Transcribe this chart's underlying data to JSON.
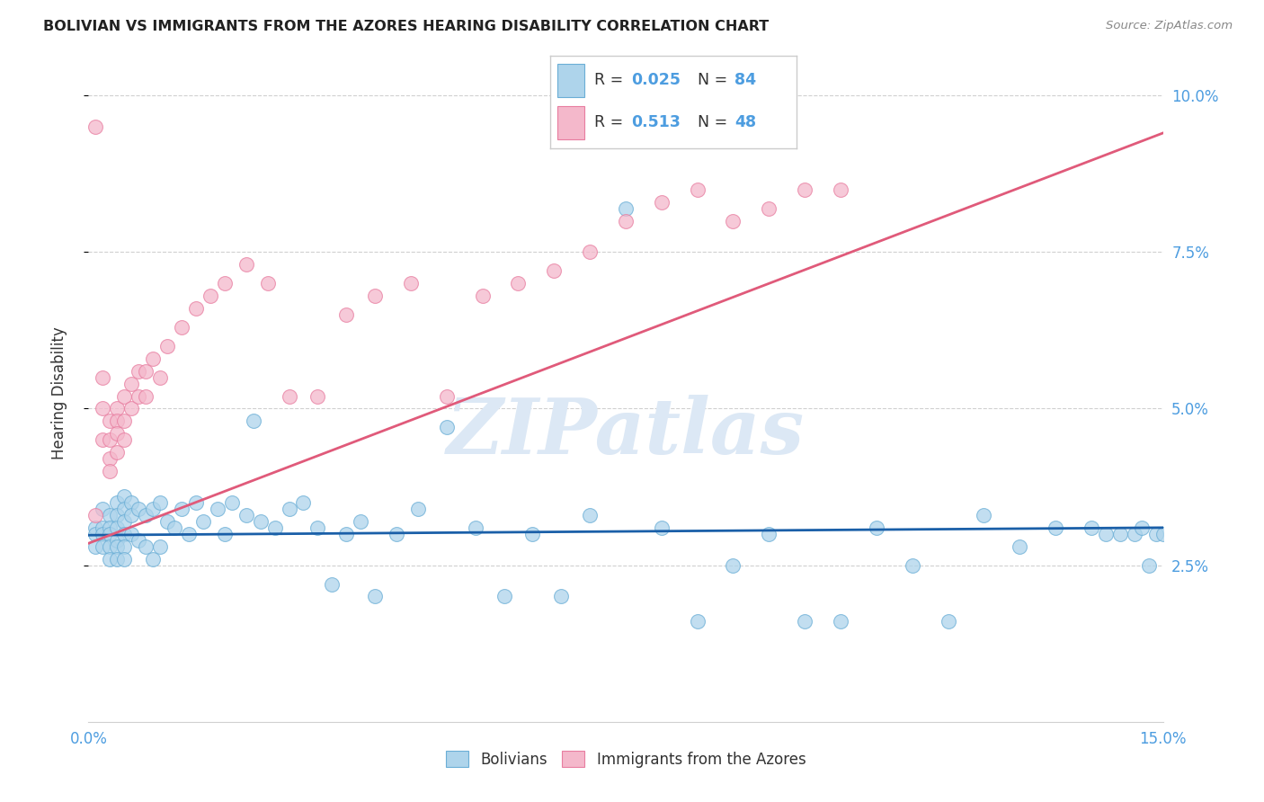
{
  "title": "BOLIVIAN VS IMMIGRANTS FROM THE AZORES HEARING DISABILITY CORRELATION CHART",
  "source": "Source: ZipAtlas.com",
  "ylabel": "Hearing Disability",
  "xlim": [
    0.0,
    0.15
  ],
  "ylim": [
    0.0,
    0.105
  ],
  "xtick_positions": [
    0.0,
    0.05,
    0.1,
    0.15
  ],
  "xtick_labels": [
    "0.0%",
    "",
    "",
    "15.0%"
  ],
  "ytick_positions": [
    0.025,
    0.05,
    0.075,
    0.1
  ],
  "ytick_labels": [
    "2.5%",
    "5.0%",
    "7.5%",
    "10.0%"
  ],
  "blue_fill": "#aed4eb",
  "blue_edge": "#6aaed6",
  "pink_fill": "#f4b8cb",
  "pink_edge": "#e87da0",
  "blue_line": "#1a5fa8",
  "pink_line": "#e05a7a",
  "axis_color": "#4d9de0",
  "grid_color": "#d0d0d0",
  "title_color": "#222222",
  "source_color": "#888888",
  "label_color": "#333333",
  "watermark_color": "#dce8f5",
  "legend1_label": "Bolivians",
  "legend2_label": "Immigrants from the Azores",
  "blue_line_y0": 0.0298,
  "blue_line_y1": 0.031,
  "pink_line_y0": 0.0285,
  "pink_line_y1": 0.094,
  "bolivians_x": [
    0.001,
    0.001,
    0.001,
    0.002,
    0.002,
    0.002,
    0.002,
    0.003,
    0.003,
    0.003,
    0.003,
    0.003,
    0.004,
    0.004,
    0.004,
    0.004,
    0.004,
    0.004,
    0.005,
    0.005,
    0.005,
    0.005,
    0.005,
    0.005,
    0.006,
    0.006,
    0.006,
    0.007,
    0.007,
    0.008,
    0.008,
    0.009,
    0.009,
    0.01,
    0.01,
    0.011,
    0.012,
    0.013,
    0.014,
    0.015,
    0.016,
    0.018,
    0.019,
    0.02,
    0.022,
    0.023,
    0.024,
    0.026,
    0.028,
    0.03,
    0.032,
    0.034,
    0.036,
    0.038,
    0.04,
    0.043,
    0.046,
    0.05,
    0.054,
    0.058,
    0.062,
    0.066,
    0.07,
    0.075,
    0.08,
    0.085,
    0.09,
    0.095,
    0.1,
    0.105,
    0.11,
    0.115,
    0.12,
    0.125,
    0.13,
    0.135,
    0.14,
    0.142,
    0.144,
    0.146,
    0.147,
    0.148,
    0.149,
    0.15
  ],
  "bolivians_y": [
    0.031,
    0.03,
    0.028,
    0.034,
    0.031,
    0.03,
    0.028,
    0.033,
    0.031,
    0.03,
    0.028,
    0.026,
    0.035,
    0.033,
    0.031,
    0.029,
    0.028,
    0.026,
    0.036,
    0.034,
    0.032,
    0.03,
    0.028,
    0.026,
    0.035,
    0.033,
    0.03,
    0.034,
    0.029,
    0.033,
    0.028,
    0.034,
    0.026,
    0.035,
    0.028,
    0.032,
    0.031,
    0.034,
    0.03,
    0.035,
    0.032,
    0.034,
    0.03,
    0.035,
    0.033,
    0.048,
    0.032,
    0.031,
    0.034,
    0.035,
    0.031,
    0.022,
    0.03,
    0.032,
    0.02,
    0.03,
    0.034,
    0.047,
    0.031,
    0.02,
    0.03,
    0.02,
    0.033,
    0.082,
    0.031,
    0.016,
    0.025,
    0.03,
    0.016,
    0.016,
    0.031,
    0.025,
    0.016,
    0.033,
    0.028,
    0.031,
    0.031,
    0.03,
    0.03,
    0.03,
    0.031,
    0.025,
    0.03,
    0.03
  ],
  "azores_x": [
    0.001,
    0.001,
    0.002,
    0.002,
    0.002,
    0.003,
    0.003,
    0.003,
    0.003,
    0.004,
    0.004,
    0.004,
    0.004,
    0.005,
    0.005,
    0.005,
    0.006,
    0.006,
    0.007,
    0.007,
    0.008,
    0.008,
    0.009,
    0.01,
    0.011,
    0.013,
    0.015,
    0.017,
    0.019,
    0.022,
    0.025,
    0.028,
    0.032,
    0.036,
    0.04,
    0.045,
    0.05,
    0.055,
    0.06,
    0.065,
    0.07,
    0.075,
    0.08,
    0.085,
    0.09,
    0.095,
    0.1,
    0.105
  ],
  "azores_y": [
    0.095,
    0.033,
    0.055,
    0.05,
    0.045,
    0.048,
    0.045,
    0.042,
    0.04,
    0.05,
    0.048,
    0.046,
    0.043,
    0.052,
    0.048,
    0.045,
    0.054,
    0.05,
    0.056,
    0.052,
    0.056,
    0.052,
    0.058,
    0.055,
    0.06,
    0.063,
    0.066,
    0.068,
    0.07,
    0.073,
    0.07,
    0.052,
    0.052,
    0.065,
    0.068,
    0.07,
    0.052,
    0.068,
    0.07,
    0.072,
    0.075,
    0.08,
    0.083,
    0.085,
    0.08,
    0.082,
    0.085,
    0.085
  ]
}
